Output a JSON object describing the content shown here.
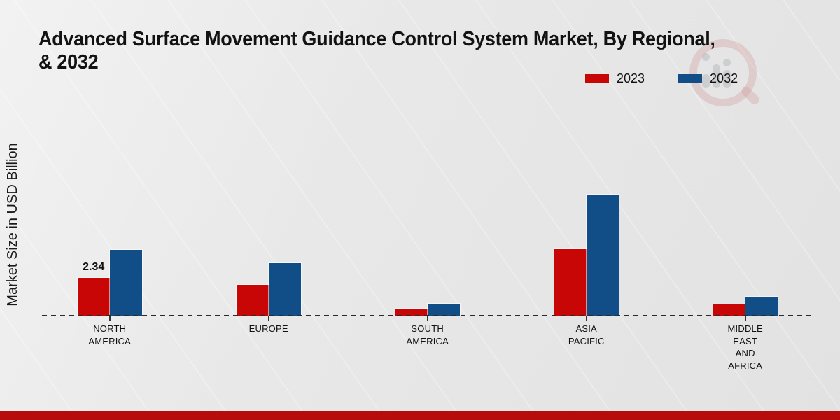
{
  "page": {
    "title_line1": "Advanced Surface Movement Guidance Control System Market, By Regional,",
    "title_line2": "& 2032",
    "background_color": "#eaeaea",
    "footer_bar_color": "#b70c0c"
  },
  "watermark": {
    "name": "market-research-magnifier-logo"
  },
  "legend": {
    "position": "top-right"
  },
  "chart_data": {
    "type": "bar",
    "title": "Advanced Surface Movement Guidance Control System Market, By Regional, & 2032",
    "ylabel": "Market Size in USD Billion",
    "xlabel": "",
    "ylim": [
      0,
      8
    ],
    "grid": false,
    "legend_position": "top-right",
    "baseline_style": "dashed",
    "categories": [
      "NORTH AMERICA",
      "EUROPE",
      "SOUTH AMERICA",
      "ASIA PACIFIC",
      "MIDDLE EAST AND AFRICA"
    ],
    "category_label_lines": [
      [
        "NORTH",
        "AMERICA"
      ],
      [
        "EUROPE"
      ],
      [
        "SOUTH",
        "AMERICA"
      ],
      [
        "ASIA",
        "PACIFIC"
      ],
      [
        "MIDDLE",
        "EAST",
        "AND",
        "AFRICA"
      ]
    ],
    "series": [
      {
        "name": "2023",
        "color": "#c90606",
        "values": [
          2.34,
          1.92,
          0.42,
          4.13,
          0.69
        ]
      },
      {
        "name": "2032",
        "color": "#114e87",
        "values": [
          4.07,
          3.26,
          0.73,
          7.5,
          1.19
        ]
      }
    ],
    "data_labels": [
      {
        "series_index": 0,
        "category_index": 0,
        "text": "2.34"
      }
    ]
  }
}
